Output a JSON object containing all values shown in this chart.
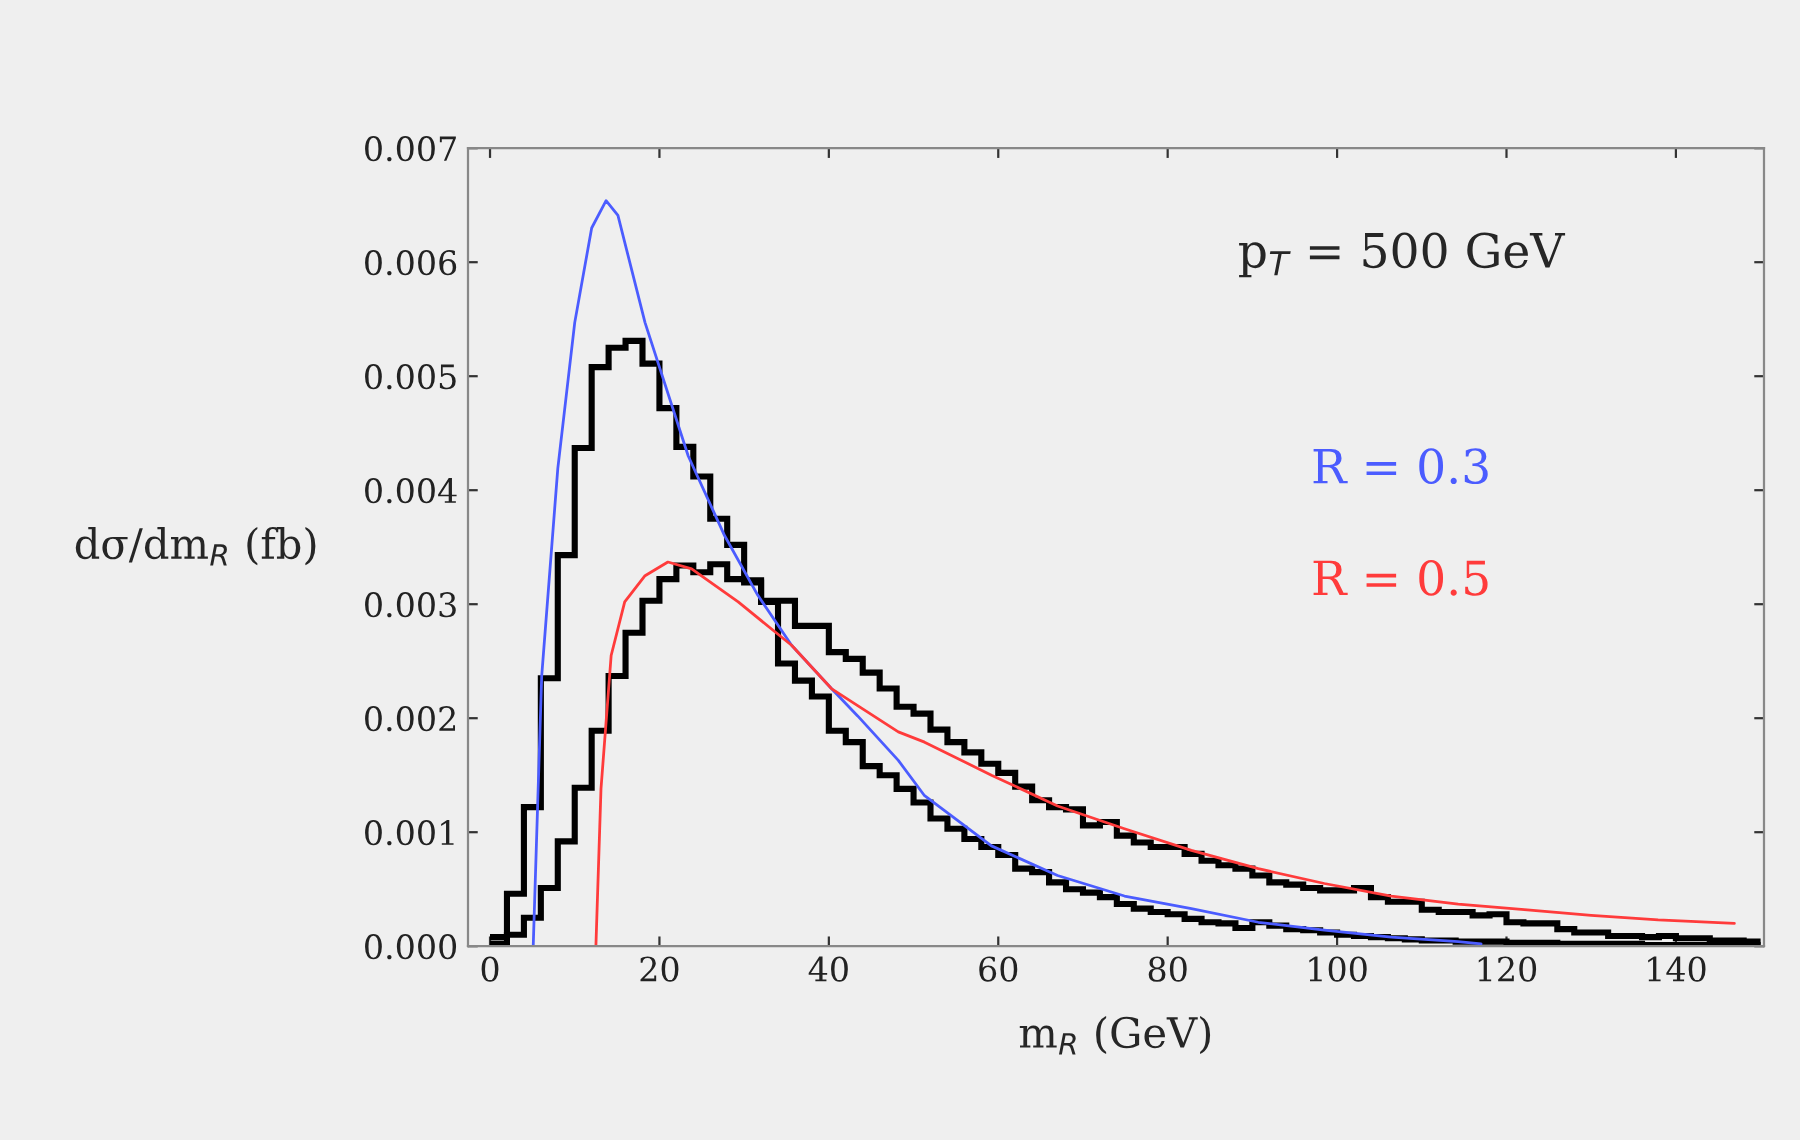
{
  "chart_data": {
    "type": "histogram",
    "xlabel": "m$_{R}$ (GeV)",
    "ylabel": "dσ/dm$_{R}$ (fb)",
    "annotations": [
      "p$_{T}$ = 500 GeV"
    ],
    "bins": [
      0,
      2,
      4,
      6,
      8,
      10,
      12,
      14,
      16,
      18,
      20,
      22,
      24,
      26,
      28,
      30,
      32,
      34,
      36,
      38,
      40,
      42,
      44,
      46,
      48,
      50,
      52,
      54,
      56,
      58,
      60,
      62,
      64,
      66,
      68,
      70,
      72,
      74,
      76,
      78,
      80,
      82,
      84,
      86,
      88,
      90,
      92,
      94,
      96,
      98,
      100,
      102,
      104,
      106,
      108,
      110,
      112,
      114,
      116,
      118,
      120,
      122,
      124,
      126,
      128,
      130,
      132,
      134,
      136,
      138,
      140,
      142,
      144,
      146,
      148,
      150
    ],
    "series": [
      {
        "color": "#000000",
        "values": [
          8e-05,
          0.00046,
          0.00122,
          0.00235,
          0.00343,
          0.00437,
          0.00508,
          0.00525,
          0.00531,
          0.00511,
          0.00472,
          0.00438,
          0.00412,
          0.00375,
          0.00352,
          0.00319,
          0.00302,
          0.00248,
          0.00233,
          0.00219,
          0.00189,
          0.00179,
          0.00158,
          0.0015,
          0.00138,
          0.00126,
          0.00112,
          0.00103,
          0.00094,
          0.00087,
          0.0008,
          0.00068,
          0.00065,
          0.00056,
          0.0005,
          0.00047,
          0.00043,
          0.00037,
          0.00033,
          0.0003,
          0.00028,
          0.00024,
          0.00021,
          0.0002,
          0.00016,
          0.00021,
          0.00018,
          0.00015,
          0.00014,
          0.00012,
          0.0001,
          9e-05,
          8e-05,
          7e-05,
          6e-05,
          5e-05,
          5e-05,
          4e-05,
          4e-05,
          4e-05,
          3e-05,
          3e-05,
          3e-05,
          2e-05,
          2e-05,
          2e-05,
          2e-05,
          2e-05,
          1e-05,
          1e-05,
          1e-05,
          1e-05,
          1e-05,
          1e-05,
          1e-05
        ]
      },
      {
        "color": "#000000",
        "values": [
          2e-05,
          0.0001,
          0.00025,
          0.00051,
          0.00092,
          0.00139,
          0.00189,
          0.00237,
          0.00275,
          0.00303,
          0.00322,
          0.00334,
          0.00328,
          0.00335,
          0.00322,
          0.00321,
          0.00303,
          0.00303,
          0.00281,
          0.00281,
          0.00258,
          0.00252,
          0.0024,
          0.00226,
          0.0021,
          0.00204,
          0.0019,
          0.00179,
          0.0017,
          0.0016,
          0.00152,
          0.0014,
          0.00128,
          0.00122,
          0.0012,
          0.00106,
          0.00109,
          0.00097,
          0.00091,
          0.00087,
          0.00087,
          0.00081,
          0.00075,
          0.00071,
          0.00068,
          0.00062,
          0.00056,
          0.00054,
          0.00051,
          0.00049,
          0.00049,
          0.00051,
          0.00043,
          0.00039,
          0.00039,
          0.00032,
          0.0003,
          0.0003,
          0.00027,
          0.00028,
          0.00021,
          0.0002,
          0.0002,
          0.00015,
          0.00012,
          0.00012,
          9e-05,
          9e-05,
          8e-05,
          9e-05,
          7e-05,
          7e-05,
          5e-05,
          5e-05,
          4e-05
        ]
      },
      {
        "type": "line",
        "name": "R = 0.3",
        "color": "#4b5cff",
        "x": [
          5.1,
          6.1,
          8.0,
          10.0,
          12.0,
          13.7,
          15.1,
          18.3,
          23.4,
          27.7,
          31.6,
          35.6,
          40.3,
          43.4,
          48.2,
          51.3,
          59.2,
          67.0,
          74.9,
          82.8,
          90.7,
          98.5,
          106.4,
          114.3,
          117
        ],
        "values": [
          0,
          0.00237,
          0.00419,
          0.00547,
          0.0063,
          0.00654,
          0.00641,
          0.00547,
          0.0043,
          0.0036,
          0.00308,
          0.00264,
          0.00226,
          0.00202,
          0.00163,
          0.00132,
          0.00088,
          0.00062,
          0.00044,
          0.00033,
          0.00021,
          0.00014,
          8e-05,
          4e-05,
          2e-05
        ]
      },
      {
        "type": "line",
        "name": "R = 0.5",
        "color": "#ff3b3b",
        "x": [
          12.5,
          13.1,
          14.3,
          15.9,
          18.3,
          21.0,
          23.8,
          29.3,
          35.6,
          40.3,
          43.4,
          48.2,
          51.3,
          59.2,
          67.0,
          74.9,
          82.8,
          90.7,
          98.5,
          106.4,
          114.3,
          122.1,
          130,
          137.9,
          146.9
        ],
        "values": [
          0,
          0.00138,
          0.00255,
          0.00302,
          0.00325,
          0.00337,
          0.00331,
          0.00302,
          0.00264,
          0.00226,
          0.00211,
          0.00188,
          0.00179,
          0.0015,
          0.00123,
          0.00103,
          0.00084,
          0.00068,
          0.00055,
          0.00044,
          0.00037,
          0.00032,
          0.00027,
          0.00023,
          0.0002
        ]
      }
    ],
    "xlim": [
      -2.6,
      150.4
    ],
    "ylim": [
      0,
      0.007
    ],
    "xticks": [
      0,
      20,
      40,
      60,
      80,
      100,
      120,
      140
    ],
    "yticks": [
      {
        "value": 0,
        "label": "0.000"
      },
      0.001,
      0.002,
      0.003,
      0.004,
      0.005,
      0.006,
      0.007
    ]
  }
}
